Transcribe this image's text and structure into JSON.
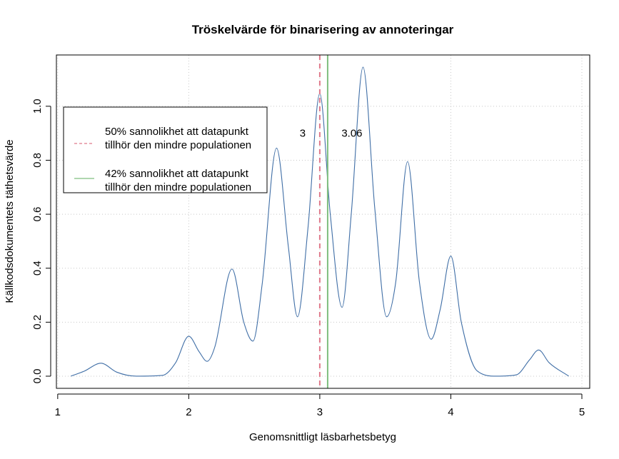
{
  "chart_data": {
    "type": "line",
    "title": "Tröskelvärde för binarisering av annoteringar",
    "xlabel": "Genomsnittligt läsbarhetsbetyg",
    "ylabel": "Källkodsdokumentets täthetsvärde",
    "xlim": [
      0.99,
      5.06
    ],
    "ylim": [
      -0.045,
      1.19
    ],
    "x_ticks": [
      1,
      2,
      3,
      4,
      5
    ],
    "x_tick_labels": [
      "1",
      "2",
      "3",
      "4",
      "5"
    ],
    "y_ticks": [
      0.0,
      0.2,
      0.4,
      0.6,
      0.8,
      1.0
    ],
    "y_tick_labels": [
      "0.0",
      "0.2",
      "0.4",
      "0.6",
      "0.8",
      "1.0"
    ],
    "grid": true,
    "series": [
      {
        "type": "density",
        "color": "#3f6ea6",
        "x": [
          1.1,
          1.2,
          1.33,
          1.45,
          1.6,
          1.8,
          1.9,
          2.0,
          2.08,
          2.14,
          2.2,
          2.33,
          2.42,
          2.49,
          2.56,
          2.67,
          2.76,
          2.83,
          2.91,
          3.0,
          3.08,
          3.17,
          3.24,
          3.33,
          3.42,
          3.51,
          3.58,
          3.67,
          3.76,
          3.85,
          3.92,
          4.0,
          4.08,
          4.2,
          4.35,
          4.5,
          4.6,
          4.67,
          4.75,
          4.9
        ],
        "y": [
          0.0,
          0.018,
          0.048,
          0.015,
          0.0,
          0.003,
          0.05,
          0.148,
          0.09,
          0.055,
          0.11,
          0.397,
          0.2,
          0.13,
          0.34,
          0.845,
          0.48,
          0.22,
          0.55,
          1.047,
          0.6,
          0.255,
          0.6,
          1.145,
          0.62,
          0.22,
          0.35,
          0.795,
          0.35,
          0.137,
          0.25,
          0.445,
          0.2,
          0.02,
          0.0,
          0.005,
          0.06,
          0.097,
          0.05,
          0.0
        ]
      }
    ],
    "vlines": [
      {
        "x": 3.0,
        "color": "#df7a8c",
        "style": "dashed",
        "label": "3"
      },
      {
        "x": 3.06,
        "color": "#7fbf7f",
        "style": "solid",
        "label": "3.06"
      }
    ],
    "legend": {
      "placement": "top-left",
      "entries": [
        {
          "line1": "50% sannolikhet att datapunkt",
          "line2": "tillhör den mindre populationen",
          "color": "#df7a8c",
          "style": "dashed"
        },
        {
          "line1": "42% sannolikhet att datapunkt",
          "line2": "tillhör den mindre populationen",
          "color": "#7fbf7f",
          "style": "solid"
        }
      ]
    }
  }
}
